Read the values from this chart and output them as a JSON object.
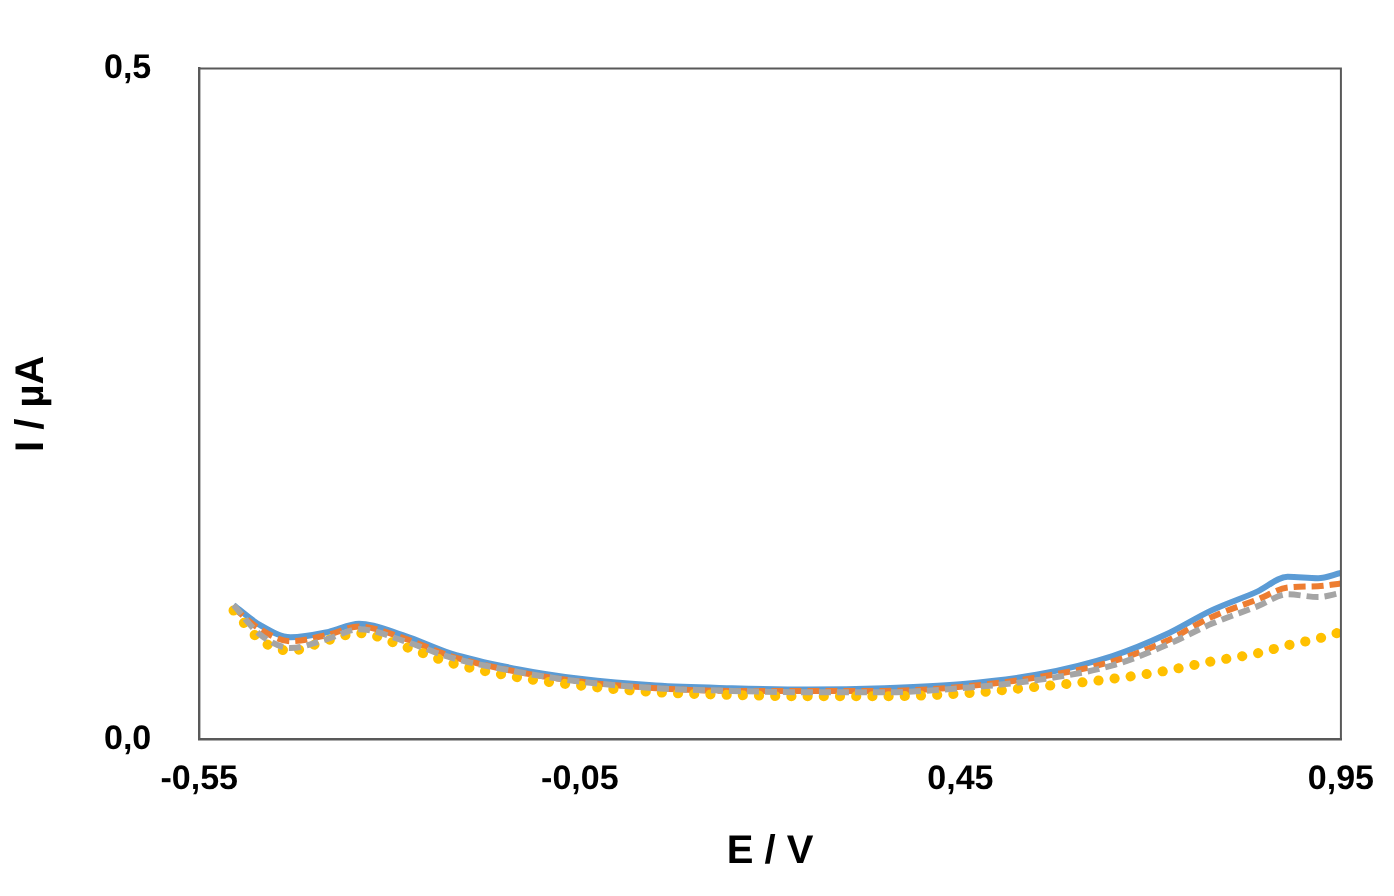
{
  "chart_data": {
    "type": "line",
    "xlabel": "E / V",
    "ylabel": "I / µA",
    "xlim": [
      -0.55,
      0.95
    ],
    "xticks": [
      {
        "value": -0.55,
        "label": "-0,55"
      },
      {
        "value": -0.05,
        "label": "-0,05"
      },
      {
        "value": 0.45,
        "label": "0,45"
      },
      {
        "value": 0.95,
        "label": "0,95"
      }
    ],
    "ylim": [
      0,
      0.5
    ],
    "yticks": [
      {
        "value": 0,
        "label": "0,0"
      },
      {
        "value": 0.5,
        "label": "0,5"
      }
    ],
    "grid": false,
    "legend": false,
    "marker": "none",
    "x": [
      -0.505,
      -0.47,
      -0.43,
      -0.38,
      -0.34,
      -0.28,
      -0.22,
      -0.13,
      -0.05,
      0.05,
      0.15,
      0.25,
      0.35,
      0.45,
      0.55,
      0.65,
      0.72,
      0.78,
      0.84,
      0.88,
      0.92,
      0.95
    ],
    "series": [
      {
        "color": "#a5a5a5",
        "line_style": "dashed",
        "values": [
          0.1,
          0.078,
          0.068,
          0.075,
          0.082,
          0.073,
          0.061,
          0.05,
          0.043,
          0.038,
          0.036,
          0.035,
          0.035,
          0.038,
          0.044,
          0.055,
          0.07,
          0.086,
          0.099,
          0.108,
          0.106,
          0.109
        ]
      },
      {
        "color": "#ffc000",
        "line_style": "dotted",
        "values": [
          0.096,
          0.074,
          0.066,
          0.074,
          0.079,
          0.069,
          0.057,
          0.046,
          0.04,
          0.035,
          0.033,
          0.032,
          0.032,
          0.034,
          0.039,
          0.045,
          0.051,
          0.058,
          0.064,
          0.07,
          0.075,
          0.08
        ]
      },
      {
        "color": "#ed7d31",
        "line_style": "dashed",
        "values": [
          0.098,
          0.082,
          0.073,
          0.078,
          0.084,
          0.075,
          0.062,
          0.05,
          0.043,
          0.038,
          0.036,
          0.036,
          0.036,
          0.039,
          0.046,
          0.058,
          0.073,
          0.091,
          0.104,
          0.113,
          0.114,
          0.116
        ]
      },
      {
        "color": "#5b9bd5",
        "line_style": "solid",
        "values": [
          0.1,
          0.085,
          0.076,
          0.08,
          0.086,
          0.077,
          0.064,
          0.052,
          0.045,
          0.04,
          0.038,
          0.037,
          0.038,
          0.041,
          0.048,
          0.062,
          0.078,
          0.096,
          0.11,
          0.121,
          0.12,
          0.124
        ]
      }
    ]
  }
}
